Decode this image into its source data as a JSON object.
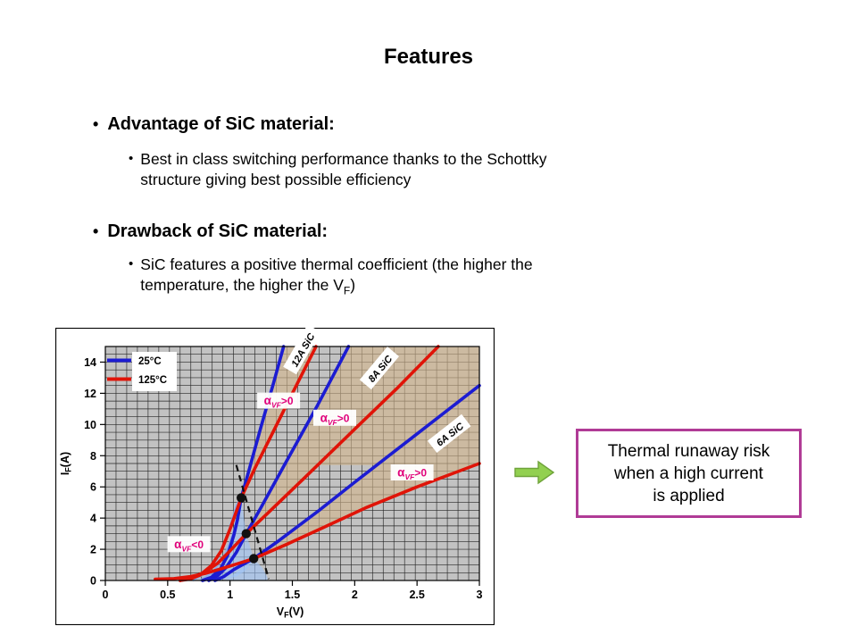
{
  "slide": {
    "title": "Features",
    "advantage_heading": "Advantage of SiC material:",
    "advantage_detail": "Best in class switching performance thanks to the Schottky structure giving best possible efficiency",
    "drawback_heading": "Drawback of SiC material:",
    "drawback_detail_pre": "SiC features a positive thermal coefficient (the higher the temperature, the higher the V",
    "drawback_detail_sub": "F",
    "drawback_detail_post": ")"
  },
  "callout": {
    "lines": [
      "Thermal runaway risk",
      "when a high current",
      "is applied"
    ],
    "border_color": "#b03b96",
    "arrow_color": "#92d050",
    "arrow_border": "#6fa33a"
  },
  "chart_data": {
    "type": "line",
    "title": "",
    "xlabel": "VF(V)",
    "ylabel": "IF(A)",
    "xlabel_parts": {
      "main": "V",
      "sub": "F",
      "unit": "(V)"
    },
    "ylabel_parts": {
      "main": "I",
      "sub": "F",
      "unit": "(A)"
    },
    "xlim": [
      0,
      3
    ],
    "ylim": [
      0,
      15
    ],
    "xtick_values": [
      0,
      0.5,
      1,
      1.5,
      2,
      2.5,
      3
    ],
    "xtick_labels": [
      "0",
      "0.5",
      "1",
      "1.5",
      "2",
      "2.5",
      "3"
    ],
    "ytick_values": [
      0,
      2,
      4,
      6,
      8,
      10,
      12,
      14
    ],
    "ytick_labels": [
      "0",
      "2",
      "4",
      "6",
      "8",
      "10",
      "12",
      "14"
    ],
    "grid": true,
    "plot_bg": "#c2c2c2",
    "legend_position": "top-left",
    "legend": [
      {
        "label": "25°C",
        "color": "#1c1cd2"
      },
      {
        "label": "125°C",
        "color": "#e01408"
      }
    ],
    "series": [
      {
        "name": "12A SiC 25°C",
        "device": "12A SiC",
        "temp": "25°C",
        "color": "#1c1cd2",
        "points": [
          [
            0.78,
            0
          ],
          [
            0.85,
            0.2
          ],
          [
            0.92,
            0.7
          ],
          [
            0.98,
            1.6
          ],
          [
            1.03,
            2.9
          ],
          [
            1.06,
            3.9
          ],
          [
            1.09,
            5.3
          ],
          [
            1.15,
            7.0
          ],
          [
            1.25,
            9.9
          ],
          [
            1.35,
            12.7
          ],
          [
            1.43,
            15
          ]
        ]
      },
      {
        "name": "12A SiC 125°C",
        "device": "12A SiC",
        "temp": "125°C",
        "color": "#e01408",
        "points": [
          [
            0.6,
            0
          ],
          [
            0.68,
            0.1
          ],
          [
            0.76,
            0.35
          ],
          [
            0.85,
            0.95
          ],
          [
            0.93,
            1.9
          ],
          [
            1.0,
            3.3
          ],
          [
            1.09,
            5.3
          ],
          [
            1.2,
            7.2
          ],
          [
            1.35,
            9.6
          ],
          [
            1.5,
            12.0
          ],
          [
            1.69,
            15
          ]
        ]
      },
      {
        "name": "8A SiC 25°C",
        "device": "8A SiC",
        "temp": "25°C",
        "color": "#1c1cd2",
        "points": [
          [
            0.83,
            0
          ],
          [
            0.9,
            0.3
          ],
          [
            0.97,
            0.85
          ],
          [
            1.05,
            1.8
          ],
          [
            1.13,
            3.0
          ],
          [
            1.25,
            4.7
          ],
          [
            1.45,
            7.6
          ],
          [
            1.7,
            11.2
          ],
          [
            1.95,
            15
          ]
        ]
      },
      {
        "name": "8A SiC 125°C",
        "device": "8A SiC",
        "temp": "125°C",
        "color": "#e01408",
        "points": [
          [
            0.6,
            0
          ],
          [
            0.7,
            0.2
          ],
          [
            0.8,
            0.55
          ],
          [
            0.9,
            1.1
          ],
          [
            1.0,
            1.9
          ],
          [
            1.13,
            3.0
          ],
          [
            1.3,
            4.3
          ],
          [
            1.6,
            6.6
          ],
          [
            2.0,
            9.7
          ],
          [
            2.35,
            12.4
          ],
          [
            2.67,
            15
          ]
        ]
      },
      {
        "name": "6A SiC 25°C",
        "device": "6A SiC",
        "temp": "25°C",
        "color": "#1c1cd2",
        "points": [
          [
            0.88,
            0
          ],
          [
            0.95,
            0.25
          ],
          [
            1.03,
            0.7
          ],
          [
            1.12,
            1.1
          ],
          [
            1.19,
            1.4
          ],
          [
            1.4,
            2.6
          ],
          [
            1.7,
            4.4
          ],
          [
            2.0,
            6.3
          ],
          [
            2.5,
            9.4
          ],
          [
            3.0,
            12.5
          ]
        ]
      },
      {
        "name": "6A SiC 125°C",
        "device": "6A SiC",
        "temp": "125°C",
        "color": "#e01408",
        "points": [
          [
            0.4,
            0.08
          ],
          [
            0.55,
            0.12
          ],
          [
            0.68,
            0.25
          ],
          [
            0.8,
            0.45
          ],
          [
            0.95,
            0.8
          ],
          [
            1.07,
            1.1
          ],
          [
            1.19,
            1.4
          ],
          [
            1.45,
            2.3
          ],
          [
            1.75,
            3.4
          ],
          [
            2.1,
            4.7
          ],
          [
            2.5,
            6.0
          ],
          [
            3.0,
            7.5
          ]
        ]
      }
    ],
    "crossover_points": [
      [
        1.09,
        5.3
      ],
      [
        1.13,
        3.0
      ],
      [
        1.19,
        1.4
      ]
    ],
    "dashed_line": [
      [
        1.05,
        7.4
      ],
      [
        1.31,
        0.1
      ]
    ],
    "curve_labels": [
      {
        "text": "12A SiC",
        "x": 1.58,
        "y": 14.8,
        "angle": -60
      },
      {
        "text": "8A SiC",
        "x": 2.2,
        "y": 13.6,
        "angle": -50
      },
      {
        "text": "6A SiC",
        "x": 2.76,
        "y": 9.4,
        "angle": -38
      }
    ],
    "alpha_color": "#e0007a",
    "alpha_labels": [
      {
        "alpha": "α",
        "sub": "VF",
        "sign": ">0",
        "x": 1.39,
        "y": 11.5
      },
      {
        "alpha": "α",
        "sub": "VF",
        "sign": ">0",
        "x": 1.84,
        "y": 10.4
      },
      {
        "alpha": "α",
        "sub": "VF",
        "sign": ">0",
        "x": 2.46,
        "y": 6.9
      },
      {
        "alpha": "α",
        "sub": "VF",
        "sign": "<0",
        "x": 0.67,
        "y": 2.3
      }
    ],
    "regions": {
      "tan_color": "#d2b48c",
      "tan_polys": [
        [
          [
            1.09,
            5.3
          ],
          [
            1.15,
            7.0
          ],
          [
            1.25,
            9.9
          ],
          [
            1.35,
            12.7
          ],
          [
            1.43,
            15
          ],
          [
            1.69,
            15
          ],
          [
            1.5,
            12.0
          ],
          [
            1.35,
            9.6
          ],
          [
            1.2,
            7.2
          ]
        ],
        [
          [
            1.13,
            3.0
          ],
          [
            1.25,
            4.7
          ],
          [
            1.45,
            7.6
          ],
          [
            1.7,
            11.2
          ],
          [
            1.95,
            15
          ],
          [
            2.67,
            15
          ],
          [
            2.35,
            12.4
          ],
          [
            2.0,
            9.7
          ],
          [
            1.6,
            6.6
          ],
          [
            1.3,
            4.3
          ]
        ],
        [
          [
            1.19,
            1.4
          ],
          [
            1.4,
            2.6
          ],
          [
            1.7,
            4.4
          ],
          [
            2.0,
            6.3
          ],
          [
            2.5,
            9.4
          ],
          [
            3.0,
            12.5
          ],
          [
            3.0,
            7.5
          ],
          [
            2.5,
            6.0
          ],
          [
            2.1,
            4.7
          ],
          [
            1.75,
            3.4
          ],
          [
            1.45,
            2.3
          ]
        ],
        [
          [
            1.7,
            7.4
          ],
          [
            2.0,
            9.7
          ],
          [
            2.35,
            12.4
          ],
          [
            2.67,
            15
          ],
          [
            3.0,
            15
          ],
          [
            3.0,
            12.5
          ],
          [
            2.5,
            9.4
          ],
          [
            2.18,
            7.4
          ]
        ]
      ],
      "blue_color": "#9fc5f8",
      "blue_polys": [
        [
          [
            0.85,
            0
          ],
          [
            0.93,
            0.6
          ],
          [
            1.0,
            1.8
          ],
          [
            1.05,
            3.2
          ],
          [
            1.09,
            5.3
          ],
          [
            1.13,
            3.0
          ],
          [
            1.16,
            2.2
          ],
          [
            1.19,
            1.4
          ],
          [
            1.12,
            0.6
          ],
          [
            1.05,
            0.25
          ],
          [
            0.95,
            0.05
          ]
        ],
        [
          [
            0.95,
            0
          ],
          [
            1.05,
            0.5
          ],
          [
            1.15,
            1.1
          ],
          [
            1.19,
            1.4
          ],
          [
            1.26,
            0.8
          ],
          [
            1.3,
            0.2
          ],
          [
            1.3,
            0
          ]
        ]
      ],
      "blue_streaks": [
        [
          [
            0.7,
            0
          ],
          [
            0.8,
            0.45
          ],
          [
            0.9,
            1.4
          ],
          [
            0.98,
            2.9
          ],
          [
            1.05,
            4.8
          ],
          [
            1.08,
            5.2
          ]
        ],
        [
          [
            0.76,
            0
          ],
          [
            0.86,
            0.5
          ],
          [
            0.95,
            1.5
          ],
          [
            1.02,
            2.9
          ],
          [
            1.07,
            4.2
          ]
        ]
      ]
    }
  }
}
